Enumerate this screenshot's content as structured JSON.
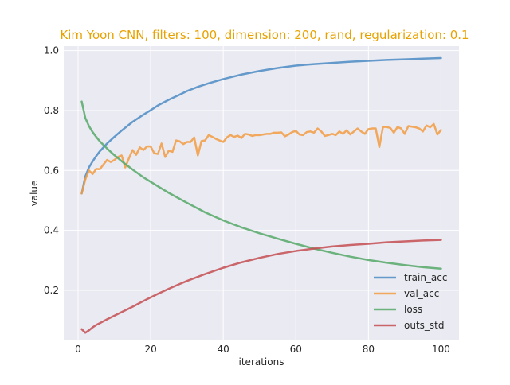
{
  "chart_data": {
    "type": "line",
    "title": "Kim Yoon CNN, filters: 100, dimension: 200, rand, regularization: 0.1",
    "xlabel": "iterations",
    "ylabel": "value",
    "xlim": [
      -3.95,
      104.95
    ],
    "ylim": [
      0.035,
      1.015
    ],
    "xticks": [
      0,
      20,
      40,
      60,
      80,
      100
    ],
    "yticks": [
      0.2,
      0.4,
      0.6,
      0.8,
      1.0
    ],
    "xtick_labels": [
      "0",
      "20",
      "40",
      "60",
      "80",
      "100"
    ],
    "ytick_labels": [
      "0.2",
      "0.4",
      "0.6",
      "0.8",
      "1.0"
    ],
    "grid": true,
    "legend_position": "lower-right",
    "colors": {
      "title": "#e8a200",
      "plot_bg": "#eaeaf2",
      "grid": "#ffffff",
      "text": "#262626"
    },
    "series": [
      {
        "name": "train_acc",
        "color": "#4c8cc4",
        "x": [
          1,
          2,
          3,
          4,
          5,
          6,
          8,
          10,
          12,
          15,
          18,
          20,
          22,
          25,
          28,
          30,
          33,
          36,
          38,
          40,
          42,
          45,
          50,
          55,
          60,
          65,
          70,
          75,
          80,
          85,
          90,
          95,
          100
        ],
        "y": [
          0.523,
          0.58,
          0.61,
          0.63,
          0.648,
          0.664,
          0.69,
          0.712,
          0.733,
          0.762,
          0.786,
          0.801,
          0.817,
          0.836,
          0.853,
          0.865,
          0.879,
          0.891,
          0.898,
          0.905,
          0.911,
          0.92,
          0.932,
          0.942,
          0.95,
          0.955,
          0.959,
          0.963,
          0.966,
          0.969,
          0.971,
          0.973,
          0.975
        ]
      },
      {
        "name": "val_acc",
        "color": "#f29c42",
        "x": [
          1,
          2,
          3,
          4,
          5,
          6,
          7,
          8,
          9,
          10,
          11,
          12,
          13,
          14,
          15,
          16,
          17,
          18,
          19,
          20,
          21,
          22,
          23,
          24,
          25,
          26,
          27,
          28,
          29,
          30,
          31,
          32,
          33,
          34,
          35,
          36,
          37,
          38,
          39,
          40,
          41,
          42,
          43,
          44,
          45,
          46,
          47,
          48,
          49,
          50,
          51,
          52,
          53,
          54,
          55,
          56,
          57,
          58,
          59,
          60,
          61,
          62,
          63,
          64,
          65,
          66,
          67,
          68,
          69,
          70,
          71,
          72,
          73,
          74,
          75,
          76,
          77,
          78,
          79,
          80,
          81,
          82,
          83,
          84,
          85,
          86,
          87,
          88,
          89,
          90,
          91,
          92,
          93,
          94,
          95,
          96,
          97,
          98,
          99,
          100
        ],
        "y": [
          0.523,
          0.57,
          0.6,
          0.588,
          0.605,
          0.604,
          0.62,
          0.635,
          0.628,
          0.635,
          0.645,
          0.65,
          0.61,
          0.64,
          0.668,
          0.652,
          0.677,
          0.668,
          0.68,
          0.68,
          0.657,
          0.655,
          0.69,
          0.645,
          0.666,
          0.662,
          0.7,
          0.697,
          0.688,
          0.695,
          0.695,
          0.71,
          0.65,
          0.698,
          0.7,
          0.718,
          0.712,
          0.705,
          0.7,
          0.695,
          0.71,
          0.718,
          0.712,
          0.716,
          0.708,
          0.722,
          0.72,
          0.715,
          0.718,
          0.718,
          0.72,
          0.722,
          0.722,
          0.726,
          0.726,
          0.727,
          0.714,
          0.72,
          0.728,
          0.732,
          0.72,
          0.718,
          0.728,
          0.73,
          0.726,
          0.74,
          0.73,
          0.715,
          0.718,
          0.722,
          0.718,
          0.73,
          0.722,
          0.734,
          0.72,
          0.73,
          0.74,
          0.73,
          0.722,
          0.738,
          0.74,
          0.74,
          0.678,
          0.745,
          0.745,
          0.742,
          0.726,
          0.745,
          0.74,
          0.722,
          0.748,
          0.746,
          0.744,
          0.74,
          0.73,
          0.75,
          0.744,
          0.755,
          0.72,
          0.735
        ]
      },
      {
        "name": "loss",
        "color": "#55a868",
        "x": [
          1,
          2,
          3,
          4,
          5,
          6,
          8,
          10,
          12,
          15,
          18,
          20,
          22,
          25,
          28,
          30,
          35,
          40,
          45,
          50,
          55,
          60,
          65,
          70,
          75,
          80,
          85,
          90,
          95,
          100
        ],
        "y": [
          0.83,
          0.775,
          0.748,
          0.728,
          0.712,
          0.697,
          0.673,
          0.651,
          0.631,
          0.603,
          0.577,
          0.562,
          0.547,
          0.525,
          0.505,
          0.492,
          0.46,
          0.433,
          0.41,
          0.39,
          0.372,
          0.355,
          0.339,
          0.325,
          0.312,
          0.301,
          0.292,
          0.284,
          0.277,
          0.272
        ]
      },
      {
        "name": "outs_std",
        "color": "#c44e52",
        "x": [
          1,
          2,
          3,
          4,
          5,
          6,
          8,
          10,
          12,
          15,
          18,
          20,
          22,
          25,
          28,
          30,
          35,
          40,
          45,
          50,
          55,
          60,
          65,
          70,
          75,
          80,
          85,
          90,
          95,
          100
        ],
        "y": [
          0.07,
          0.058,
          0.066,
          0.076,
          0.084,
          0.09,
          0.103,
          0.115,
          0.127,
          0.145,
          0.164,
          0.176,
          0.188,
          0.205,
          0.221,
          0.231,
          0.254,
          0.275,
          0.293,
          0.308,
          0.321,
          0.331,
          0.339,
          0.346,
          0.351,
          0.355,
          0.36,
          0.363,
          0.366,
          0.368
        ]
      }
    ]
  }
}
